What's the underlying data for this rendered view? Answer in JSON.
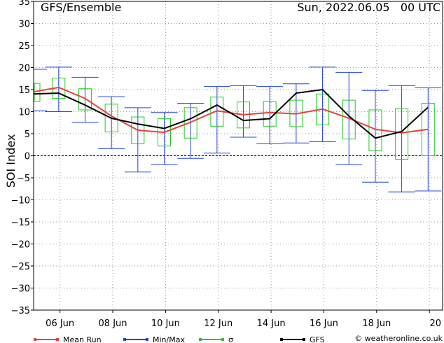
{
  "chart_data": {
    "type": "line",
    "title": "GFS/Ensemble",
    "date_label": "Sun, 2022.06.05   00 UTC",
    "ylabel": "SOI Index",
    "xlabel": "",
    "ylim": [
      -35,
      35
    ],
    "y_ticks": [
      -35,
      -30,
      -25,
      -20,
      -15,
      -10,
      -5,
      0,
      5,
      10,
      15,
      20,
      25,
      30,
      35
    ],
    "x_ticks": [
      {
        "x": 1,
        "label": "06 Jun"
      },
      {
        "x": 3,
        "label": "08 Jun"
      },
      {
        "x": 5,
        "label": "10 Jun"
      },
      {
        "x": 7,
        "label": "12 Jun"
      },
      {
        "x": 9,
        "label": "14 Jun"
      },
      {
        "x": 11,
        "label": "16 Jun"
      },
      {
        "x": 13,
        "label": "18 Jun"
      },
      {
        "x": 15,
        "label": "20"
      }
    ],
    "xlim": [
      0,
      15.5
    ],
    "grid": true,
    "x": [
      0,
      0.95,
      1.95,
      2.95,
      3.95,
      4.95,
      5.95,
      6.95,
      7.95,
      8.95,
      9.95,
      10.95,
      11.95,
      12.95,
      13.95,
      14.95
    ],
    "mean_run": [
      14.5,
      15.5,
      13.0,
      9.0,
      5.8,
      5.3,
      7.6,
      10.2,
      9.3,
      9.8,
      9.5,
      10.6,
      8.5,
      6.0,
      5.2,
      6.0
    ],
    "gfs": [
      14.0,
      14.2,
      11.5,
      8.5,
      7.2,
      6.2,
      8.4,
      11.5,
      8.0,
      8.4,
      14.2,
      15.0,
      9.0,
      4.0,
      5.5,
      11.0
    ],
    "min": [
      10.2,
      10.0,
      7.6,
      1.6,
      -3.7,
      -2.0,
      -0.6,
      0.6,
      4.2,
      2.7,
      2.9,
      3.2,
      -2.0,
      -6.0,
      -8.2,
      -8.0
    ],
    "max": [
      19.6,
      20.1,
      17.8,
      13.4,
      10.9,
      9.8,
      11.9,
      15.7,
      15.9,
      15.7,
      16.3,
      20.1,
      18.9,
      14.8,
      15.9,
      15.4
    ],
    "sigma_low": [
      12.3,
      13.0,
      10.4,
      5.4,
      2.7,
      2.2,
      4.0,
      6.7,
      6.3,
      6.7,
      6.6,
      7.0,
      3.8,
      1.1,
      -0.8,
      0.0
    ],
    "sigma_high": [
      16.4,
      17.6,
      15.2,
      11.7,
      8.8,
      8.4,
      10.9,
      13.3,
      12.2,
      12.3,
      12.6,
      14.0,
      12.6,
      10.4,
      10.7,
      11.9
    ]
  },
  "legend": [
    {
      "key": "mean_run",
      "label": "Mean Run",
      "color": "#e8403a"
    },
    {
      "key": "minmax",
      "label": "Min/Max",
      "color": "#2244dd"
    },
    {
      "key": "sigma",
      "label": "σ",
      "color": "#22cc22"
    },
    {
      "key": "gfs",
      "label": "GFS",
      "color": "#000000"
    }
  ],
  "copyright": "© weatheronline.co.uk"
}
